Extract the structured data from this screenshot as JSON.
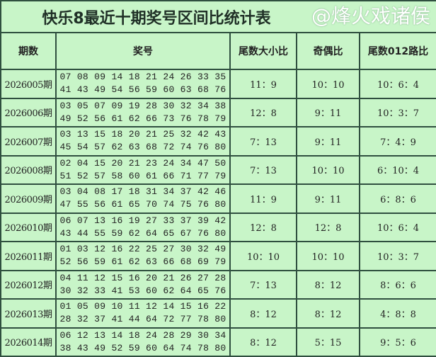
{
  "title": "快乐8最近十期奖号区间比统计表",
  "headers": [
    "期数",
    "奖号",
    "尾数大小比",
    "奇偶比",
    "尾数012路比"
  ],
  "rows": [
    {
      "period": "2026005期",
      "line1": "07 08 09 14 18 21 24 26 33 35",
      "line2": "41 43 49 54 56 59 60 63 68 76",
      "big_small": "11：9",
      "odd_even": "10：10",
      "route012": "10：6：4"
    },
    {
      "period": "2026006期",
      "line1": "03 05 07 09 19 28 30 32 34 38",
      "line2": "49 52 56 61 62 66 73 76 78 79",
      "big_small": "12：8",
      "odd_even": "9：11",
      "route012": "10：3：7"
    },
    {
      "period": "2026007期",
      "line1": "03 13 15 18 20 21 25 32 42 43",
      "line2": "45 54 57 62 63 68 72 74 76 80",
      "big_small": "7：13",
      "odd_even": "9：11",
      "route012": "7：4：9"
    },
    {
      "period": "2026008期",
      "line1": "02 04 15 20 21 23 24 34 47 50",
      "line2": "51 52 57 58 60 61 66 71 77 79",
      "big_small": "7：13",
      "odd_even": "10：10",
      "route012": "6：10：4"
    },
    {
      "period": "2026009期",
      "line1": "03 04 08 17 18 31 34 37 42 46",
      "line2": "47 55 56 61 65 70 74 75 76 80",
      "big_small": "11：9",
      "odd_even": "9：11",
      "route012": "6：8：6"
    },
    {
      "period": "2026010期",
      "line1": "06 07 13 16 19 27 33 37 39 42",
      "line2": "43 44 55 59 62 64 65 67 76 80",
      "big_small": "12：8",
      "odd_even": "12：8",
      "route012": "10：6：4"
    },
    {
      "period": "2026011期",
      "line1": "01 03 12 16 22 25 27 30 32 49",
      "line2": "52 56 59 61 62 63 66 68 69 79",
      "big_small": "10：10",
      "odd_even": "10：10",
      "route012": "10：3：7"
    },
    {
      "period": "2026012期",
      "line1": "04 11 12 15 16 20 21 26 27 28",
      "line2": "30 32 33 41 53 60 62 64 65 76",
      "big_small": "7：13",
      "odd_even": "8：12",
      "route012": "8：6：6"
    },
    {
      "period": "2026013期",
      "line1": "01 05 09 10 11 12 14 15 16 22",
      "line2": "28 32 37 41 44 64 72 77 78 80",
      "big_small": "8：12",
      "odd_even": "8：12",
      "route012": "4：8：8"
    },
    {
      "period": "2026014期",
      "line1": "06 12 13 14 18 24 28 29 30 34",
      "line2": "38 43 49 52 59 60 64 74 78 80",
      "big_small": "8：12",
      "odd_even": "5：15",
      "route012": "9：5：6"
    }
  ],
  "watermark": "@烽火戏诸侯",
  "colors": {
    "background": "#c8f5c8",
    "border": "#2f4f3f"
  }
}
